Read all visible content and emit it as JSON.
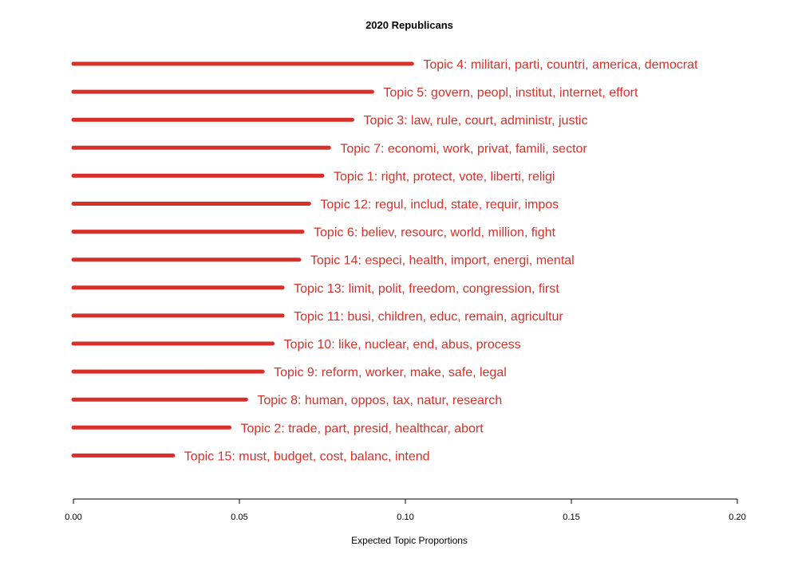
{
  "chart_data": {
    "type": "bar",
    "orientation": "horizontal",
    "title": "2020 Republicans",
    "xlabel": "Expected Topic Proportions",
    "ylabel": "",
    "xlim": [
      0,
      0.2
    ],
    "xticks": [
      "0.00",
      "0.05",
      "0.10",
      "0.15",
      "0.20"
    ],
    "grid": false,
    "color": "#d7302a",
    "categories": [
      "Topic 4: militari, parti, countri, america, democrat",
      "Topic 5: govern, peopl, institut, internet, effort",
      "Topic 3: law, rule, court, administr, justic",
      "Topic 7: economi, work, privat, famili, sector",
      "Topic 1: right, protect, vote, liberti, religi",
      "Topic 12: regul, includ, state, requir, impos",
      "Topic 6: believ, resourc, world, million, fight",
      "Topic 14: especi, health, import, energi, mental",
      "Topic 13: limit, polit, freedom, congression, first",
      "Topic 11: busi, children, educ, remain, agricultur",
      "Topic 10: like, nuclear, end, abus, process",
      "Topic 9: reform, worker, make, safe, legal",
      "Topic 8: human, oppos, tax, natur, research",
      "Topic 2: trade, part, presid, healthcar, abort",
      "Topic 15: must, budget, cost, balanc, intend"
    ],
    "values": [
      0.102,
      0.09,
      0.084,
      0.077,
      0.075,
      0.071,
      0.069,
      0.068,
      0.063,
      0.063,
      0.06,
      0.057,
      0.052,
      0.047,
      0.03
    ]
  }
}
